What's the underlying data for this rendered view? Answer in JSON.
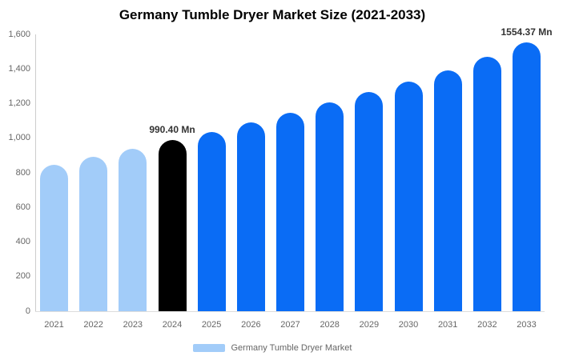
{
  "title": "Germany Tumble Dryer Market Size (2021-2033)",
  "legend": {
    "label": "Germany Tumble Dryer Market",
    "swatch_color": "#a2ccf9"
  },
  "chart_data": {
    "type": "bar",
    "title": "Germany Tumble Dryer Market Size (2021-2033)",
    "unit": "Mn",
    "categories": [
      "2021",
      "2022",
      "2023",
      "2024",
      "2025",
      "2026",
      "2027",
      "2028",
      "2029",
      "2030",
      "2031",
      "2032",
      "2033"
    ],
    "values": [
      845,
      892,
      938,
      990.4,
      1038,
      1090,
      1145,
      1205,
      1265,
      1328,
      1394,
      1472,
      1554.37
    ],
    "bar_styles": [
      "historical",
      "historical",
      "historical",
      "highlight",
      "forecast",
      "forecast",
      "forecast",
      "forecast",
      "forecast",
      "forecast",
      "forecast",
      "forecast",
      "forecast"
    ],
    "colors": {
      "historical": "#a2ccf9",
      "highlight": "#000000",
      "forecast": "#0a6cf5"
    },
    "annotations": [
      {
        "category": "2024",
        "label": "990.40 Mn"
      },
      {
        "category": "2033",
        "label": "1554.37 Mn"
      }
    ],
    "ylim": [
      0,
      1600
    ],
    "yticks": {
      "values": [
        0,
        200,
        400,
        600,
        800,
        1000,
        1200,
        1400,
        1600
      ],
      "labels": [
        "0",
        "200",
        "400",
        "600",
        "800",
        "1,000",
        "1,200",
        "1,400",
        "1,600"
      ]
    },
    "xlabel": "",
    "ylabel": "",
    "grid": false,
    "legend_position": "bottom"
  }
}
